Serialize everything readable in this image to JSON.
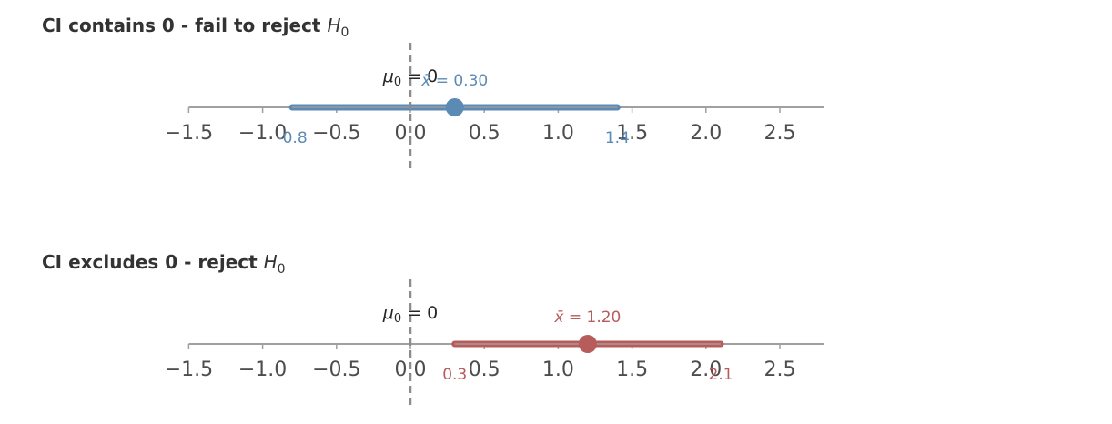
{
  "chart_data": [
    {
      "type": "interval",
      "title": "CI contains 0 - fail to reject H0",
      "title_text": "CI contains 0 - fail to reject ",
      "title_math": "H",
      "title_sub": "0",
      "null_value": 0,
      "null_label": "μ0 = 0",
      "mean": 0.3,
      "mean_label": "x̄ = 0.30",
      "ci_lower": -0.8,
      "ci_upper": 1.4,
      "ci_lower_label": "-0.8",
      "ci_upper_label": "1.4",
      "color": "#5b8ab5",
      "xlim": [
        -1.5,
        2.8
      ],
      "xticks": [
        -1.5,
        -1.0,
        -0.5,
        0.0,
        0.5,
        1.0,
        1.5,
        2.0,
        2.5
      ],
      "xtick_labels": [
        "−1.5",
        "−1.0",
        "−0.5",
        "0.0",
        "0.5",
        "1.0",
        "1.5",
        "2.0",
        "2.5"
      ],
      "xlabel": "",
      "ylabel": "",
      "grid": false
    },
    {
      "type": "interval",
      "title": "CI excludes 0 - reject H0",
      "title_text": "CI excludes 0 - reject ",
      "title_math": "H",
      "title_sub": "0",
      "null_value": 0,
      "null_label": "μ0 = 0",
      "mean": 1.2,
      "mean_label": "x̄ = 1.20",
      "ci_lower": 0.3,
      "ci_upper": 2.1,
      "ci_lower_label": "0.3",
      "ci_upper_label": "2.1",
      "color": "#b85b5b",
      "xlim": [
        -1.5,
        2.8
      ],
      "xticks": [
        -1.5,
        -1.0,
        -0.5,
        0.0,
        0.5,
        1.0,
        1.5,
        2.0,
        2.5
      ],
      "xtick_labels": [
        "−1.5",
        "−1.0",
        "−0.5",
        "0.0",
        "0.5",
        "1.0",
        "1.5",
        "2.0",
        "2.5"
      ],
      "xlabel": "",
      "ylabel": "",
      "grid": false
    }
  ],
  "style": {
    "axis_color": "#a0a0a0",
    "null_line_color": "#8c8c8c",
    "tick_label_color": "#4d4d4d",
    "title_color": "#333333"
  }
}
